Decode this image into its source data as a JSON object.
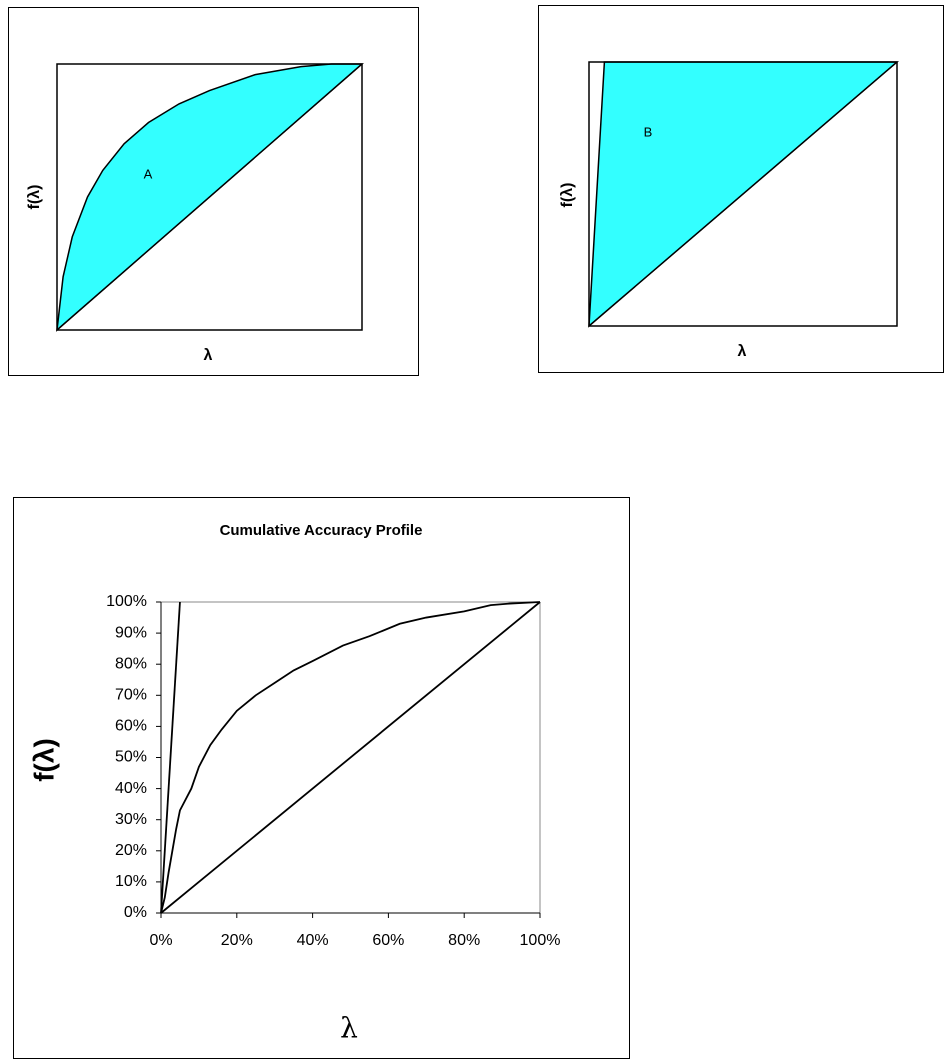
{
  "chart_data": [
    {
      "type": "area",
      "annotation": "A",
      "xlabel": "λ",
      "ylabel": "f(λ)",
      "color": "#33ffff",
      "x": [
        0,
        0.02,
        0.05,
        0.1,
        0.15,
        0.22,
        0.3,
        0.4,
        0.5,
        0.65,
        0.8,
        0.9,
        1
      ],
      "values": [
        0,
        0.2,
        0.35,
        0.5,
        0.6,
        0.7,
        0.78,
        0.85,
        0.9,
        0.96,
        0.99,
        1,
        1
      ],
      "xlim": [
        0,
        1
      ],
      "ylim": [
        0,
        1
      ]
    },
    {
      "type": "area",
      "annotation": "B",
      "xlabel": "λ",
      "ylabel": "f(λ)",
      "color": "#33ffff",
      "x": [
        0,
        0.05,
        1
      ],
      "values": [
        0,
        1,
        1
      ],
      "xlim": [
        0,
        1
      ],
      "ylim": [
        0,
        1
      ]
    },
    {
      "type": "line",
      "title": "Cumulative Accuracy Profile",
      "xlabel": "λ",
      "ylabel": "f(λ)",
      "series": [
        {
          "color": "#000000",
          "x": [
            0,
            100
          ],
          "values": [
            0,
            100
          ]
        },
        {
          "color": "#000000",
          "x": [
            0,
            5
          ],
          "values": [
            0,
            100
          ]
        },
        {
          "color": "#000000",
          "x": [
            0,
            1,
            2,
            3,
            4,
            5,
            8,
            10,
            13,
            16,
            20,
            25,
            30,
            35,
            40,
            48,
            55,
            63,
            70,
            80,
            87,
            92,
            100
          ],
          "values": [
            0,
            5,
            13,
            20,
            27,
            33,
            40,
            47,
            54,
            59,
            65,
            70,
            74,
            78,
            81,
            86,
            89,
            93,
            95,
            97,
            99,
            99.5,
            100
          ]
        }
      ],
      "xlim": [
        0,
        100
      ],
      "ylim": [
        0,
        100
      ],
      "xticks": [
        {
          "value": 0,
          "label": "0%"
        },
        {
          "value": 20,
          "label": "20%"
        },
        {
          "value": 40,
          "label": "40%"
        },
        {
          "value": 60,
          "label": "60%"
        },
        {
          "value": 80,
          "label": "80%"
        },
        {
          "value": 100,
          "label": "100%"
        }
      ],
      "yticks": [
        {
          "value": 0,
          "label": "0%"
        },
        {
          "value": 10,
          "label": "10%"
        },
        {
          "value": 20,
          "label": "20%"
        },
        {
          "value": 30,
          "label": "30%"
        },
        {
          "value": 40,
          "label": "40%"
        },
        {
          "value": 50,
          "label": "50%"
        },
        {
          "value": 60,
          "label": "60%"
        },
        {
          "value": 70,
          "label": "70%"
        },
        {
          "value": 80,
          "label": "80%"
        },
        {
          "value": 90,
          "label": "90%"
        },
        {
          "value": 100,
          "label": "100%"
        }
      ],
      "grid": false
    }
  ]
}
